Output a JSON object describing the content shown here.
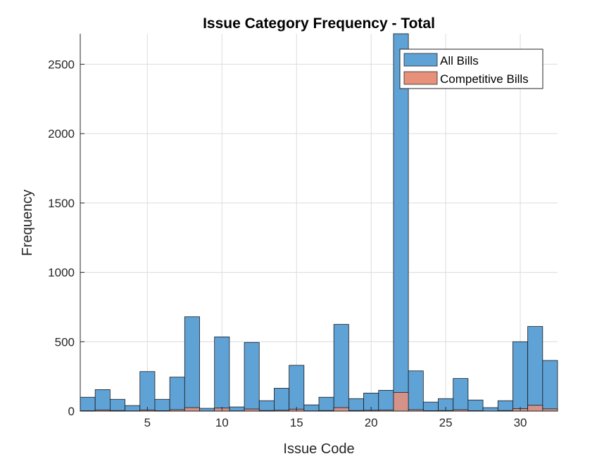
{
  "chart_data": {
    "type": "bar",
    "title": "Issue Category Frequency - Total",
    "xlabel": "Issue Code",
    "ylabel": "Frequency",
    "xlim": [
      0.5,
      32.5
    ],
    "ylim": [
      0,
      2720
    ],
    "xticks": [
      5,
      10,
      15,
      20,
      25,
      30
    ],
    "yticks": [
      0,
      500,
      1000,
      1500,
      2000,
      2500
    ],
    "grid": true,
    "legend_position": "top-right",
    "categories": [
      1,
      2,
      3,
      4,
      5,
      6,
      7,
      8,
      9,
      10,
      11,
      12,
      13,
      14,
      15,
      16,
      17,
      18,
      19,
      20,
      21,
      22,
      23,
      24,
      25,
      26,
      27,
      28,
      29,
      30,
      31,
      32
    ],
    "series": [
      {
        "name": "All Bills",
        "color": "#5fa2d6",
        "values": [
          100,
          155,
          85,
          40,
          285,
          85,
          245,
          680,
          20,
          535,
          30,
          495,
          75,
          165,
          330,
          45,
          100,
          625,
          90,
          130,
          150,
          2720,
          290,
          65,
          90,
          235,
          80,
          25,
          75,
          500,
          610,
          365
        ]
      },
      {
        "name": "Competitive Bills",
        "color": "#e8917a",
        "values": [
          3,
          8,
          4,
          2,
          8,
          3,
          10,
          25,
          1,
          22,
          2,
          15,
          4,
          6,
          14,
          2,
          4,
          25,
          4,
          6,
          7,
          135,
          10,
          3,
          4,
          10,
          3,
          1,
          4,
          18,
          42,
          16
        ]
      }
    ]
  }
}
